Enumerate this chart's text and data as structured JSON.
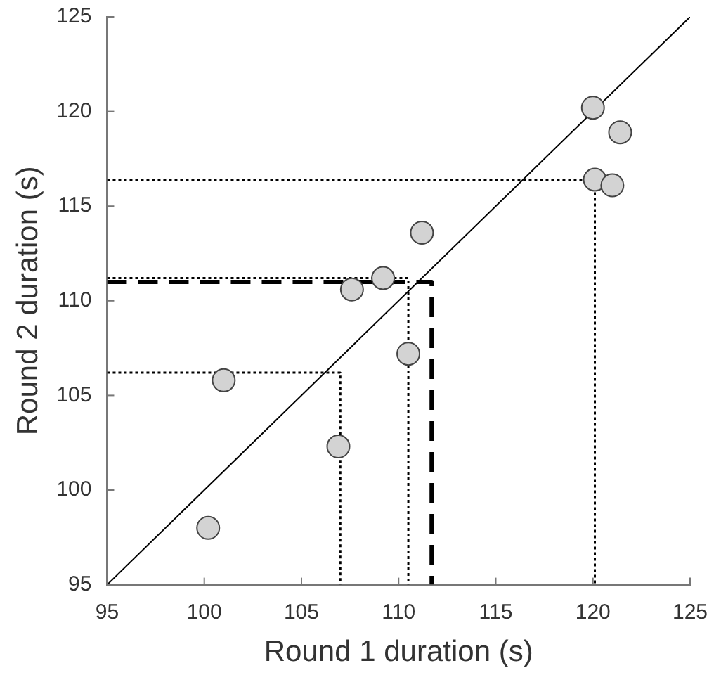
{
  "chart_data": {
    "type": "scatter",
    "xlabel": "Round 1 duration (s)",
    "ylabel": "Round 2 duration (s)",
    "xlim": [
      95,
      125
    ],
    "ylim": [
      95,
      125
    ],
    "xticks": [
      95,
      100,
      105,
      110,
      115,
      120,
      125
    ],
    "yticks": [
      95,
      100,
      105,
      110,
      115,
      120,
      125
    ],
    "grid": false,
    "legend": false,
    "marker": "circle",
    "series": [
      {
        "type": "line",
        "marker": "none",
        "color": "#000000",
        "line_style": "solid",
        "x": [
          95,
          125
        ],
        "values": [
          95,
          125
        ]
      },
      {
        "type": "line",
        "marker": "none",
        "color": "#000000",
        "line_style": "dotted",
        "x": [
          95,
          120.1,
          120.1
        ],
        "values": [
          116.4,
          116.4,
          95
        ]
      },
      {
        "type": "line",
        "marker": "none",
        "color": "#000000",
        "line_style": "dotted",
        "x": [
          95,
          110.5,
          110.5
        ],
        "values": [
          111.2,
          111.2,
          95
        ]
      },
      {
        "type": "line",
        "marker": "none",
        "color": "#000000",
        "line_style": "dotted",
        "x": [
          95,
          107.0,
          107.0
        ],
        "values": [
          106.2,
          106.2,
          95
        ]
      },
      {
        "type": "line",
        "marker": "none",
        "color": "#000000",
        "line_style": "dashed",
        "x": [
          95,
          111.7,
          111.7
        ],
        "values": [
          111.0,
          111.0,
          95
        ]
      },
      {
        "color": "#d3d3d3",
        "x": [
          120.0,
          121.4,
          120.1,
          121.0,
          111.2,
          109.2,
          107.6,
          110.5,
          101.0,
          106.9,
          100.2
        ],
        "values": [
          120.2,
          118.9,
          116.4,
          116.1,
          113.6,
          111.2,
          110.6,
          107.2,
          105.8,
          102.3,
          98.0
        ]
      }
    ]
  }
}
